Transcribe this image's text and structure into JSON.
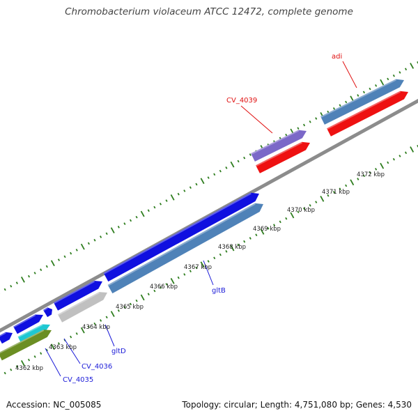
{
  "title": "Chromobacterium violaceum ATCC 12472, complete genome",
  "footer": {
    "accession": "Accession: NC_005085",
    "stats": "Topology: circular; Length: 4,751,080 bp; Genes: 4,530"
  },
  "colors": {
    "backbone": "#8c8c8c",
    "tick": "#2e7d1e",
    "blue": "#1010e0",
    "steel": "#4f82b8",
    "red": "#ee1111",
    "purple": "#7b68c8",
    "cyan": "#1ec8d2",
    "olive": "#6b8e23",
    "grey": "#c0c0c0",
    "label_blue": "#1a1ad8",
    "label_red": "#e01010"
  },
  "ruler_labels": [
    "4362 kbp",
    "4363 kbp",
    "4364 kbp",
    "4365 kbp",
    "4366 kbp",
    "4367 kbp",
    "4368 kbp",
    "4369 kbp",
    "4370 kbp",
    "4371 kbp",
    "4372 kbp"
  ],
  "gene_labels": [
    {
      "name": "adi",
      "color": "#e01010"
    },
    {
      "name": "CV_4039",
      "color": "#e01010"
    },
    {
      "name": "gltB",
      "color": "#1a1ad8"
    },
    {
      "name": "gltD",
      "color": "#1a1ad8"
    },
    {
      "name": "CV_4036",
      "color": "#1a1ad8"
    },
    {
      "name": "CV_4035",
      "color": "#1a1ad8"
    }
  ]
}
